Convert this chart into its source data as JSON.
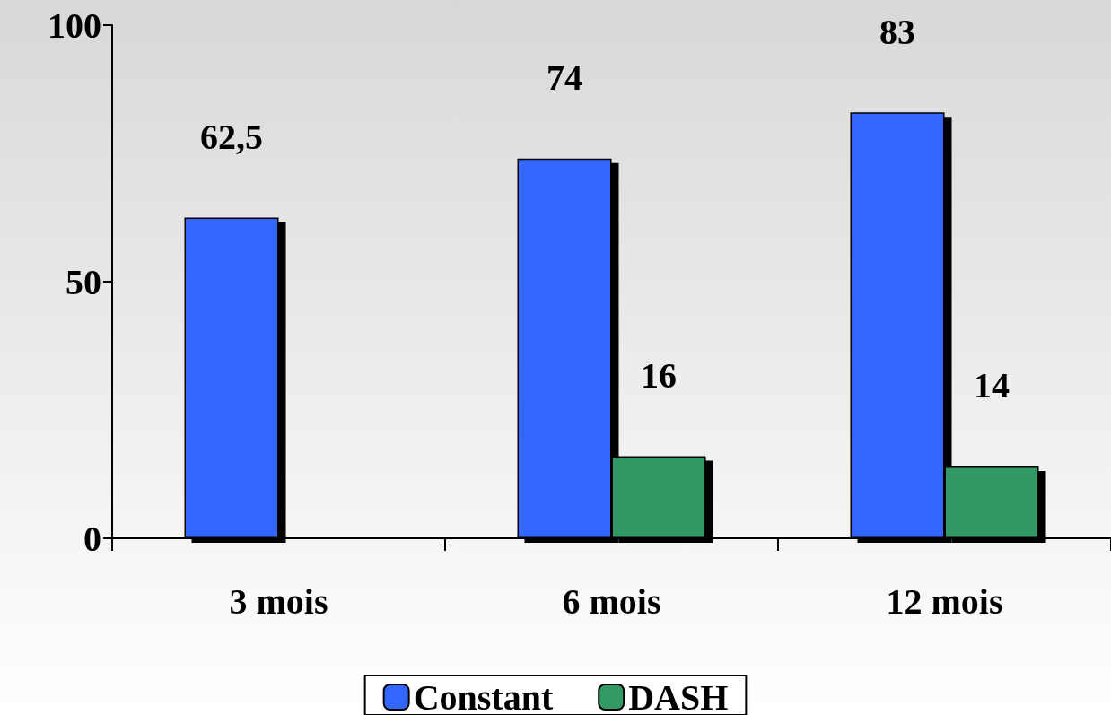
{
  "chart_data": {
    "type": "bar",
    "categories": [
      "3 mois",
      "6 mois",
      "12 mois"
    ],
    "series": [
      {
        "name": "Constant",
        "color": "#3366ff",
        "values": [
          62.5,
          74,
          83
        ],
        "value_labels": [
          "62,5",
          "74",
          "83"
        ]
      },
      {
        "name": "DASH",
        "color": "#339966",
        "values": [
          null,
          16,
          14
        ],
        "value_labels": [
          null,
          "16",
          "14"
        ]
      }
    ],
    "ylim": [
      0,
      100
    ],
    "yticks": [
      0,
      50,
      100
    ],
    "legend": "bottom"
  }
}
